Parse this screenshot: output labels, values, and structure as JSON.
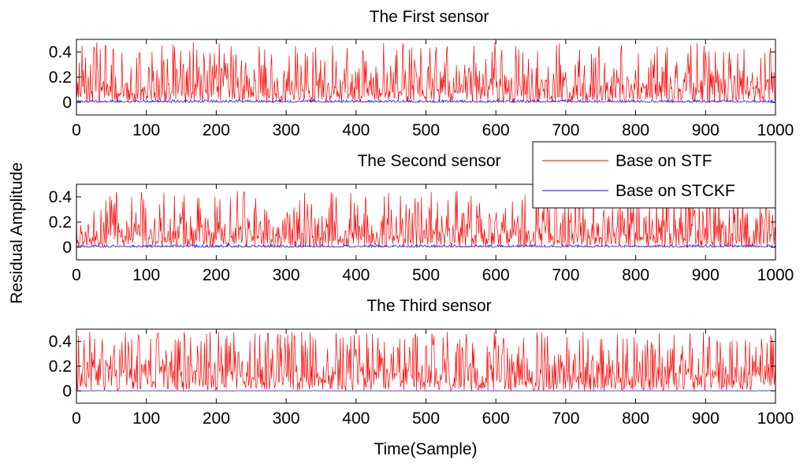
{
  "figure": {
    "ylabel": "Residual Amplitude",
    "xlabel": "Time(Sample)"
  },
  "legend": {
    "position": "top-right",
    "entries": [
      {
        "label": "Base on STF",
        "color": "#ff0000"
      },
      {
        "label": "Base on STCKF",
        "color": "#0000ff"
      }
    ]
  },
  "chart_data": [
    {
      "type": "line",
      "title": "The First sensor",
      "xlim": [
        0,
        1000
      ],
      "ylim": [
        -0.1,
        0.5
      ],
      "xticks": [
        0,
        100,
        200,
        300,
        400,
        500,
        600,
        700,
        800,
        900,
        1000
      ],
      "yticks": [
        0,
        0.2,
        0.4
      ],
      "ytick_labels": [
        "0",
        "0.2",
        "0.4"
      ],
      "n_samples": 1000,
      "series": [
        {
          "name": "Base on STF",
          "color": "#ff0000",
          "mean": 0.15,
          "max": 0.48,
          "noisy": true
        },
        {
          "name": "Base on STCKF",
          "color": "#0000ff",
          "mean": 0.008,
          "max": 0.02,
          "noisy": true
        }
      ]
    },
    {
      "type": "line",
      "title": "The Second sensor",
      "xlim": [
        0,
        1000
      ],
      "ylim": [
        -0.1,
        0.5
      ],
      "xticks": [
        0,
        100,
        200,
        300,
        400,
        500,
        600,
        700,
        800,
        900,
        1000
      ],
      "yticks": [
        0,
        0.2,
        0.4
      ],
      "ytick_labels": [
        "0",
        "0.2",
        "0.4"
      ],
      "n_samples": 1000,
      "series": [
        {
          "name": "Base on STF",
          "color": "#ff0000",
          "mean": 0.14,
          "max": 0.45,
          "noisy": true
        },
        {
          "name": "Base on STCKF",
          "color": "#0000ff",
          "mean": 0.008,
          "max": 0.02,
          "noisy": true
        }
      ]
    },
    {
      "type": "line",
      "title": "The Third sensor",
      "xlim": [
        0,
        1000
      ],
      "ylim": [
        -0.1,
        0.5
      ],
      "xticks": [
        0,
        100,
        200,
        300,
        400,
        500,
        600,
        700,
        800,
        900,
        1000
      ],
      "yticks": [
        0,
        0.2,
        0.4
      ],
      "ytick_labels": [
        "0",
        "0.2",
        "0.4"
      ],
      "n_samples": 1000,
      "series": [
        {
          "name": "Base on STF",
          "color": "#ff0000",
          "mean": 0.18,
          "max": 0.48,
          "noisy": true
        },
        {
          "name": "Base on STCKF",
          "color": "#0000ff",
          "mean": 0.001,
          "max": 0.003,
          "noisy": true
        }
      ]
    }
  ]
}
